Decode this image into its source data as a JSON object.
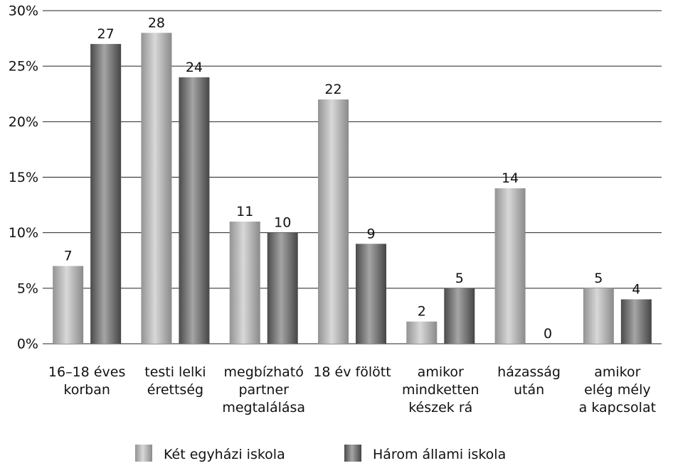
{
  "chart_data": {
    "type": "bar",
    "categories": [
      "16–18 éves\nkorban",
      "testi lelki\nérettség",
      "megbízható\npartner\nmegtalálása",
      "18 év fölött",
      "amikor\nmindketten\nkészek rá",
      "házasság\nután",
      "amikor\nelég mély\na kapcsolat"
    ],
    "series": [
      {
        "name": "Két egyházi iskola",
        "color": "#b8b8b8",
        "values": [
          7,
          28,
          11,
          22,
          2,
          14,
          5
        ]
      },
      {
        "name": "Három állami iskola",
        "color": "#5c5c5c",
        "values": [
          27,
          24,
          10,
          9,
          5,
          0,
          4
        ]
      }
    ],
    "ylim": [
      0,
      30
    ],
    "yticks": [
      {
        "value": 0,
        "label": "0%"
      },
      {
        "value": 5,
        "label": "5%"
      },
      {
        "value": 10,
        "label": "10%"
      },
      {
        "value": 15,
        "label": "15%"
      },
      {
        "value": 20,
        "label": "20%"
      },
      {
        "value": 25,
        "label": "25%"
      },
      {
        "value": 30,
        "label": "30%"
      }
    ],
    "grid": true,
    "legend": "bottom"
  }
}
